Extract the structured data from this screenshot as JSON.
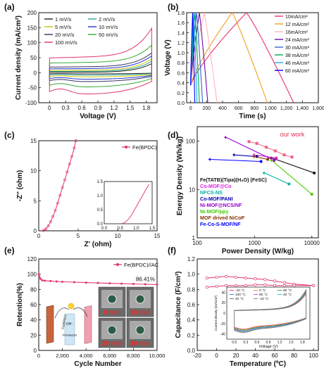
{
  "panels": {
    "a": {
      "letter": "(a)",
      "legend": [
        "1 mV/s",
        "2 mV/s",
        "5 mV/s",
        "10 mV/s",
        "20 mV/s",
        "50 mV/s",
        "100 mV/s"
      ]
    },
    "b": {
      "letter": "(b)",
      "legend": [
        "10mA/cm²",
        "12 mA/cm²",
        "16mA/cm²",
        "24 mA/cm²",
        "30 mA/cm²",
        "38 mA/cm²",
        "46 mA/cm²",
        "60 mA/cm²"
      ]
    },
    "c": {
      "letter": "(c)",
      "legend": [
        "Fe(BPDC)"
      ]
    },
    "d": {
      "letter": "(d)",
      "annotation": "our work",
      "legend": [
        "Fe(TATB)(Tipa)(H₂O) (FeSC)",
        "Co-MOF@Co",
        "NFCS-NS",
        "Co-MOF/PANI",
        "Ni-MOF@NCS/NF",
        "Ni-MOF/ppy",
        "MOF drived NiCoP",
        "Fe-Co-S-MOF/NF"
      ]
    },
    "e": {
      "letter": "(e)",
      "legend": [
        "Fe(BPDC)//AC"
      ],
      "retention_label": "86.41%",
      "inset_time_labels": [
        "0 min",
        "10 min",
        "20 min",
        "30 min"
      ],
      "inset_device_labels": [
        "Fe(BPDC)",
        "OH⁻",
        "PVA/KOH"
      ]
    },
    "f": {
      "letter": "(f)",
      "inset_xlabel": "Voltage (V)",
      "inset_ylabel": "Current density (mA/cm²)",
      "inset_legend": [
        "-10 °C",
        "0 °C",
        "60 °C",
        "100 °C",
        "80 °C",
        "40 °C",
        "20 °C",
        "-10 °C"
      ]
    }
  },
  "colors": {
    "a": [
      "#222222",
      "#2aa198",
      "#c8c800",
      "#2233cc",
      "#333366",
      "#33aa33",
      "#e0336f"
    ],
    "b": [
      "#e8336a",
      "#f0a020",
      "#ffb6c1",
      "#6a0dad",
      "#3366cc",
      "#00aa55",
      "#22aaee",
      "#0000ff"
    ],
    "d": [
      "#111111",
      "#e020e0",
      "#00b0a0",
      "#0000aa",
      "#9900cc",
      "#44cc00",
      "#883300",
      "#0000ff"
    ],
    "ours": "#f06080"
  },
  "chart_data": [
    {
      "type": "line",
      "panel": "a",
      "xlabel": "Voltage (V)",
      "ylabel": "Current density (mA/cm²)",
      "xlim": [
        -0.2,
        2.0
      ],
      "ylim": [
        -100,
        200
      ],
      "xticks": [
        0.0,
        0.3,
        0.6,
        0.9,
        1.2,
        1.5,
        1.8
      ],
      "yticks": [
        -100,
        -50,
        0,
        50,
        100,
        150,
        200
      ],
      "series": [
        {
          "name": "1 mV/s",
          "upper": 2,
          "lower": -4,
          "end_peak": 30
        },
        {
          "name": "2 mV/s",
          "upper": 5,
          "lower": -8,
          "end_peak": 38
        },
        {
          "name": "5 mV/s",
          "upper": 9,
          "lower": -14,
          "end_peak": 46
        },
        {
          "name": "10 mV/s",
          "upper": 15,
          "lower": -22,
          "end_peak": 56
        },
        {
          "name": "20 mV/s",
          "upper": 22,
          "lower": -30,
          "end_peak": 66
        },
        {
          "name": "50 mV/s",
          "upper": 38,
          "lower": -48,
          "end_peak": 92
        },
        {
          "name": "100 mV/s",
          "upper": 58,
          "lower": -72,
          "end_peak": 148
        }
      ]
    },
    {
      "type": "line",
      "panel": "b",
      "xlabel": "Time (s)",
      "ylabel": "Voltage (V)",
      "xlim": [
        -50,
        1600
      ],
      "ylim": [
        0.0,
        1.8
      ],
      "xticks": [
        0,
        200,
        400,
        600,
        800,
        1000,
        1200,
        1400,
        1600
      ],
      "xtick_labels": [
        "0",
        "200",
        "400",
        "600",
        "800",
        "1,000",
        "1,200",
        "1,400",
        "1,600"
      ],
      "yticks": [
        0.0,
        0.2,
        0.4,
        0.6,
        0.8,
        1.0,
        1.2,
        1.4,
        1.6,
        1.8
      ],
      "series": [
        {
          "name": "10mA/cm²",
          "charge_end": 700,
          "discharge_end": 1290
        },
        {
          "name": "12 mA/cm²",
          "charge_end": 520,
          "discharge_end": 960
        },
        {
          "name": "16mA/cm²",
          "charge_end": 170,
          "discharge_end": 330
        },
        {
          "name": "24 mA/cm²",
          "charge_end": 110,
          "discharge_end": 215
        },
        {
          "name": "30 mA/cm²",
          "charge_end": 75,
          "discharge_end": 150
        },
        {
          "name": "38 mA/cm²",
          "charge_end": 55,
          "discharge_end": 110
        },
        {
          "name": "46 mA/cm²",
          "charge_end": 40,
          "discharge_end": 80
        },
        {
          "name": "60 mA/cm²",
          "charge_end": 25,
          "discharge_end": 52
        }
      ]
    },
    {
      "type": "line",
      "panel": "c",
      "xlabel": "Z' (ohm)",
      "ylabel": "-Z'' (ohm)",
      "xlim": [
        0,
        15
      ],
      "ylim": [
        0,
        15
      ],
      "xticks": [
        0,
        5,
        10,
        15
      ],
      "yticks": [
        0,
        5,
        10,
        15
      ],
      "series": [
        {
          "name": "Fe(BPDC)",
          "x": [
            0.6,
            0.9,
            1.2,
            1.5,
            1.8,
            2.1,
            2.4,
            2.7,
            3.0,
            3.3,
            3.6,
            3.9,
            4.2,
            4.5,
            4.7
          ],
          "y": [
            0.05,
            0.3,
            0.8,
            1.5,
            2.4,
            3.4,
            4.6,
            5.9,
            7.2,
            8.5,
            9.8,
            11.1,
            12.4,
            13.8,
            15.0
          ]
        }
      ],
      "inset": {
        "xlim": [
          0.0,
          1.5
        ],
        "ylim": [
          0.0,
          1.5
        ],
        "xticks": [
          0.0,
          0.5,
          1.0,
          1.5
        ],
        "yticks": [
          0.0,
          0.5,
          1.0,
          1.5
        ],
        "x": [
          0.55,
          0.65,
          0.75,
          0.85,
          1.0,
          1.15,
          1.3,
          1.4
        ],
        "y": [
          0.0,
          0.05,
          0.15,
          0.3,
          0.6,
          0.9,
          1.2,
          1.4
        ]
      }
    },
    {
      "type": "scatter",
      "panel": "d",
      "xlabel": "Power Density (W/kg)",
      "ylabel": "Energy Density (Wh/kg)",
      "xscale": "log",
      "yscale": "log",
      "xlim": [
        100,
        13000
      ],
      "ylim": [
        1,
        200
      ],
      "xticks": [
        100,
        1000,
        10000
      ],
      "xtick_labels": [
        "100",
        "1000",
        "10000"
      ],
      "yticks": [
        1,
        10,
        100
      ],
      "yticks_labels": [
        "1",
        "10",
        "100"
      ],
      "ours": {
        "x": [
          800,
          1100,
          1600,
          2300,
          3300,
          4500
        ],
        "y": [
          98,
          90,
          75,
          63,
          52,
          47
        ]
      },
      "series": [
        {
          "name": "Fe(TATB)(Tipa)(H₂O) (FeSC)",
          "x": [
            2000,
            11000
          ],
          "y": [
            45,
            22
          ]
        },
        {
          "name": "Co-MOF@Co",
          "x": [
            1000,
            2400
          ],
          "y": [
            52,
            45
          ]
        },
        {
          "name": "NFCS-NS",
          "x": [
            1500,
            4000
          ],
          "y": [
            22,
            13
          ]
        },
        {
          "name": "Co-MOF/PANI",
          "x": [
            450,
            1100
          ],
          "y": [
            52,
            48
          ]
        },
        {
          "name": "Ni-MOF@NCS/NF",
          "x": [
            320,
            2200
          ],
          "y": [
            120,
            40
          ]
        },
        {
          "name": "Ni-MOF/ppy",
          "x": [
            2000,
            10000
          ],
          "y": [
            40,
            8
          ]
        },
        {
          "name": "MOF drived NiCoP",
          "x": [
            1000,
            1700
          ],
          "y": [
            48,
            42
          ]
        },
        {
          "name": "Fe-Co-S-MOF/NF",
          "x": [
            170,
            1300
          ],
          "y": [
            42,
            38
          ]
        }
      ]
    },
    {
      "type": "line",
      "panel": "e",
      "xlabel": "Cycle Number",
      "ylabel": "Retention(%)",
      "xlim": [
        0,
        10000
      ],
      "ylim": [
        0,
        120
      ],
      "xticks": [
        0,
        2000,
        4000,
        6000,
        8000,
        10000
      ],
      "xtick_labels": [
        "0",
        "2,000",
        "4,000",
        "6,000",
        "8,000",
        "10,000"
      ],
      "yticks": [
        0,
        20,
        40,
        60,
        80,
        100,
        120
      ],
      "series": [
        {
          "name": "Fe(BPDC)//AC",
          "x": [
            0,
            50,
            150,
            300,
            500,
            1000,
            1500,
            2000,
            3000,
            4000,
            5000,
            6000,
            7000,
            8000,
            9000,
            10000
          ],
          "y": [
            100,
            97,
            94,
            92,
            91.5,
            91,
            90.5,
            90,
            89.5,
            89,
            88.5,
            88,
            87.6,
            87.2,
            86.8,
            86.41
          ]
        }
      ]
    },
    {
      "type": "line",
      "panel": "f",
      "xlabel": "Temperature (ºC)",
      "ylabel": "Capacitance (F/cm²)",
      "xlim": [
        -20,
        105
      ],
      "ylim": [
        0.0,
        1.2
      ],
      "xticks": [
        -20,
        0,
        20,
        40,
        60,
        80,
        100
      ],
      "yticks": [
        0.0,
        0.2,
        0.4,
        0.6,
        0.8,
        1.0,
        1.2
      ],
      "series": [
        {
          "name": "upper",
          "x": [
            -10,
            0,
            10,
            20,
            30,
            40,
            50,
            60,
            70,
            80,
            100
          ],
          "y": [
            0.95,
            0.96,
            0.97,
            0.96,
            0.95,
            0.94,
            0.93,
            0.91,
            0.89,
            0.87,
            0.85
          ]
        },
        {
          "name": "lower",
          "x": [
            -10,
            0,
            10,
            20,
            30,
            40,
            50,
            60,
            70,
            80,
            100
          ],
          "y": [
            0.83,
            0.84,
            0.85,
            0.85,
            0.85,
            0.86,
            0.86,
            0.85,
            0.85,
            0.85,
            0.85
          ]
        }
      ],
      "inset": {
        "xlim": [
          -0.2,
          2.0
        ],
        "ylim": [
          -50,
          50
        ],
        "xticks": [
          0.0,
          0.3,
          0.6,
          0.9,
          1.2,
          1.5,
          1.8
        ],
        "yticks": [
          -40,
          -20,
          0,
          20,
          40
        ]
      }
    }
  ]
}
